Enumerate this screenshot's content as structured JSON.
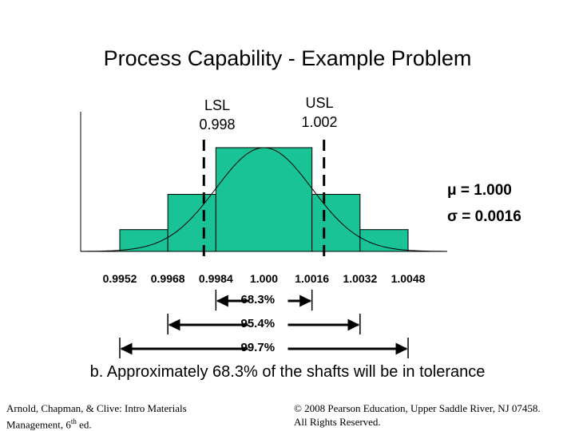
{
  "title": "Process Capability - Example Problem",
  "lsl": {
    "label": "LSL",
    "value": "0.998",
    "x": 0.998
  },
  "usl": {
    "label": "USL",
    "value": "1.002",
    "x": 1.002
  },
  "stats": {
    "mu": "μ = 1.000",
    "sigma": "σ = 0.0016"
  },
  "colors": {
    "bar_fill": "#19c396",
    "stroke": "#000000"
  },
  "chart_data": {
    "type": "bar",
    "mean": 1.0,
    "sigma": 0.0016,
    "x_ticks": [
      "0.9952",
      "0.9968",
      "0.9984",
      "1.000",
      "1.0016",
      "1.0032",
      "1.0048"
    ],
    "x_tick_values": [
      0.9952,
      0.9968,
      0.9984,
      1.0,
      1.0016,
      1.0032,
      1.0048
    ],
    "bars": [
      {
        "from": 0.9952,
        "to": 0.9968,
        "height": 0.21
      },
      {
        "from": 0.9968,
        "to": 0.9984,
        "height": 0.55
      },
      {
        "from": 0.9984,
        "to": 1.0016,
        "height": 1.0
      },
      {
        "from": 1.0016,
        "to": 1.0032,
        "height": 0.55
      },
      {
        "from": 1.0032,
        "to": 1.0048,
        "height": 0.21
      }
    ],
    "curve": "normal",
    "spec_limits": {
      "LSL": 0.998,
      "USL": 1.002
    }
  },
  "ranges": [
    {
      "label": "68.3%",
      "from": 0.9984,
      "to": 1.0016
    },
    {
      "label": "95.4%",
      "from": 0.9968,
      "to": 1.0032
    },
    {
      "label": "99.7%",
      "from": 0.9952,
      "to": 1.0048
    }
  ],
  "conclusion": "b. Approximately 68.3% of the shafts will be in tolerance",
  "footer": {
    "left_line1": "Arnold, Chapman, & Clive: Intro Materials",
    "left_line2_pre": "Management, 6",
    "left_line2_sup": "th",
    "left_line2_post": " ed.",
    "right_line1": "© 2008 Pearson Education, Upper Saddle River, NJ 07458.",
    "right_line2": "All Rights Reserved."
  }
}
